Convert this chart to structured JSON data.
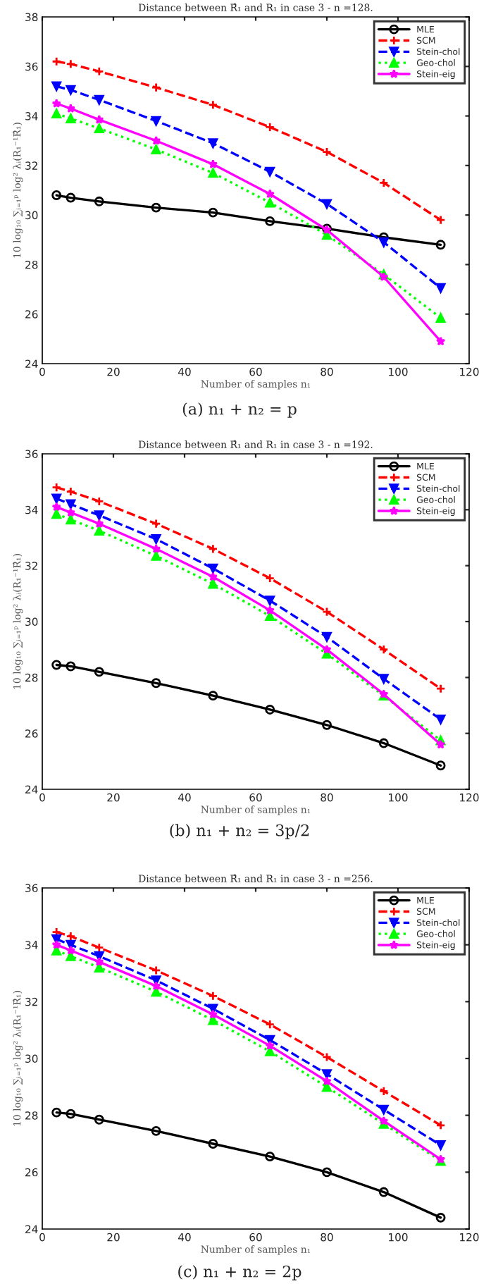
{
  "chart_data": [
    {
      "type": "line",
      "title": "Distance between R̂₁ and R₁ in case 3 - n =128.",
      "xlabel": "Number of samples n₁",
      "ylabel": "10 log₁₀ ∑ᵢ₌₁ᵖ log² λᵢ(R₁⁻¹R̂₁)",
      "annotations": [
        "(a) n₁ + n₂ = p"
      ],
      "x": [
        4,
        8,
        16,
        32,
        48,
        64,
        80,
        96,
        112
      ],
      "xlim": [
        0,
        120
      ],
      "xticks": [
        0,
        20,
        40,
        60,
        80,
        100,
        120
      ],
      "ylim": [
        24,
        38
      ],
      "yticks": [
        24,
        26,
        28,
        30,
        32,
        34,
        36,
        38
      ],
      "legend": "top right",
      "grid": false,
      "series": [
        {
          "name": "MLE",
          "color": "#000000",
          "marker": "circle",
          "line_style": "solid",
          "values": [
            30.8,
            30.7,
            30.55,
            30.3,
            30.1,
            29.75,
            29.45,
            29.1,
            28.8
          ]
        },
        {
          "name": "SCM",
          "color": "#ff0000",
          "marker": "cross",
          "line_style": "dashed",
          "values": [
            36.2,
            36.1,
            35.8,
            35.15,
            34.45,
            33.55,
            32.55,
            31.3,
            29.8
          ]
        },
        {
          "name": "Stein-chol",
          "color": "#0000ff",
          "marker": "triangle_down",
          "line_style": "dashed",
          "values": [
            35.2,
            35.05,
            34.65,
            33.8,
            32.9,
            31.75,
            30.45,
            28.9,
            27.05
          ]
        },
        {
          "name": "Geo-chol",
          "color": "#00ff00",
          "marker": "triangle",
          "line_style": "dotted",
          "values": [
            34.1,
            33.9,
            33.5,
            32.65,
            31.7,
            30.5,
            29.2,
            27.6,
            25.85
          ]
        },
        {
          "name": "Stein-eig",
          "color": "#ff00ff",
          "marker": "star",
          "line_style": "solid",
          "values": [
            34.5,
            34.3,
            33.85,
            33.0,
            32.05,
            30.85,
            29.4,
            27.5,
            24.9
          ]
        }
      ]
    },
    {
      "type": "line",
      "title": "Distance between R̂₁ and R₁ in case 3 - n =192.",
      "xlabel": "Number of samples n₁",
      "ylabel": "10 log₁₀ ∑ᵢ₌₁ᵖ log² λᵢ(R₁⁻¹R̂₁)",
      "annotations": [
        "(b) n₁ + n₂ = 3p/2"
      ],
      "x": [
        4,
        8,
        16,
        32,
        48,
        64,
        80,
        96,
        112
      ],
      "xlim": [
        0,
        120
      ],
      "xticks": [
        0,
        20,
        40,
        60,
        80,
        100,
        120
      ],
      "ylim": [
        24,
        36
      ],
      "yticks": [
        24,
        26,
        28,
        30,
        32,
        34,
        36
      ],
      "legend": "top right",
      "grid": false,
      "series": [
        {
          "name": "MLE",
          "color": "#000000",
          "marker": "circle",
          "line_style": "solid",
          "values": [
            28.45,
            28.4,
            28.2,
            27.8,
            27.35,
            26.85,
            26.3,
            25.65,
            24.85
          ]
        },
        {
          "name": "SCM",
          "color": "#ff0000",
          "marker": "cross",
          "line_style": "dashed",
          "values": [
            34.8,
            34.65,
            34.3,
            33.5,
            32.6,
            31.55,
            30.35,
            29.0,
            27.6
          ]
        },
        {
          "name": "Stein-chol",
          "color": "#0000ff",
          "marker": "triangle_down",
          "line_style": "dashed",
          "values": [
            34.4,
            34.2,
            33.8,
            32.95,
            31.9,
            30.75,
            29.45,
            27.95,
            26.5
          ]
        },
        {
          "name": "Geo-chol",
          "color": "#00ff00",
          "marker": "triangle",
          "line_style": "dotted",
          "values": [
            33.85,
            33.65,
            33.25,
            32.35,
            31.35,
            30.2,
            28.85,
            27.35,
            25.75
          ]
        },
        {
          "name": "Stein-eig",
          "color": "#ff00ff",
          "marker": "star",
          "line_style": "solid",
          "values": [
            34.1,
            33.9,
            33.5,
            32.6,
            31.6,
            30.4,
            29.0,
            27.4,
            25.6
          ]
        }
      ]
    },
    {
      "type": "line",
      "title": "Distance between R̂₁ and R₁ in case 3 - n =256.",
      "xlabel": "Number of samples n₁",
      "ylabel": "10 log₁₀ ∑ᵢ₌₁ᵖ log² λᵢ(R₁⁻¹R̂₁)",
      "annotations": [
        "(c) n₁ + n₂ = 2p"
      ],
      "x": [
        4,
        8,
        16,
        32,
        48,
        64,
        80,
        96,
        112
      ],
      "xlim": [
        0,
        120
      ],
      "xticks": [
        0,
        20,
        40,
        60,
        80,
        100,
        120
      ],
      "ylim": [
        24,
        36
      ],
      "yticks": [
        24,
        26,
        28,
        30,
        32,
        34,
        36
      ],
      "legend": "top right",
      "grid": false,
      "series": [
        {
          "name": "MLE",
          "color": "#000000",
          "marker": "circle",
          "line_style": "solid",
          "values": [
            28.1,
            28.05,
            27.85,
            27.45,
            27.0,
            26.55,
            26.0,
            25.3,
            24.4
          ]
        },
        {
          "name": "SCM",
          "color": "#ff0000",
          "marker": "cross",
          "line_style": "dashed",
          "values": [
            34.45,
            34.3,
            33.9,
            33.1,
            32.2,
            31.2,
            30.05,
            28.85,
            27.65
          ]
        },
        {
          "name": "Stein-chol",
          "color": "#0000ff",
          "marker": "triangle_down",
          "line_style": "dashed",
          "values": [
            34.2,
            34.0,
            33.6,
            32.75,
            31.75,
            30.65,
            29.45,
            28.2,
            26.95
          ]
        },
        {
          "name": "Geo-chol",
          "color": "#00ff00",
          "marker": "triangle",
          "line_style": "dotted",
          "values": [
            33.8,
            33.6,
            33.2,
            32.35,
            31.35,
            30.25,
            29.0,
            27.7,
            26.4
          ]
        },
        {
          "name": "Stein-eig",
          "color": "#ff00ff",
          "marker": "star",
          "line_style": "solid",
          "values": [
            34.0,
            33.8,
            33.4,
            32.55,
            31.55,
            30.45,
            29.2,
            27.8,
            26.45
          ]
        }
      ]
    }
  ]
}
